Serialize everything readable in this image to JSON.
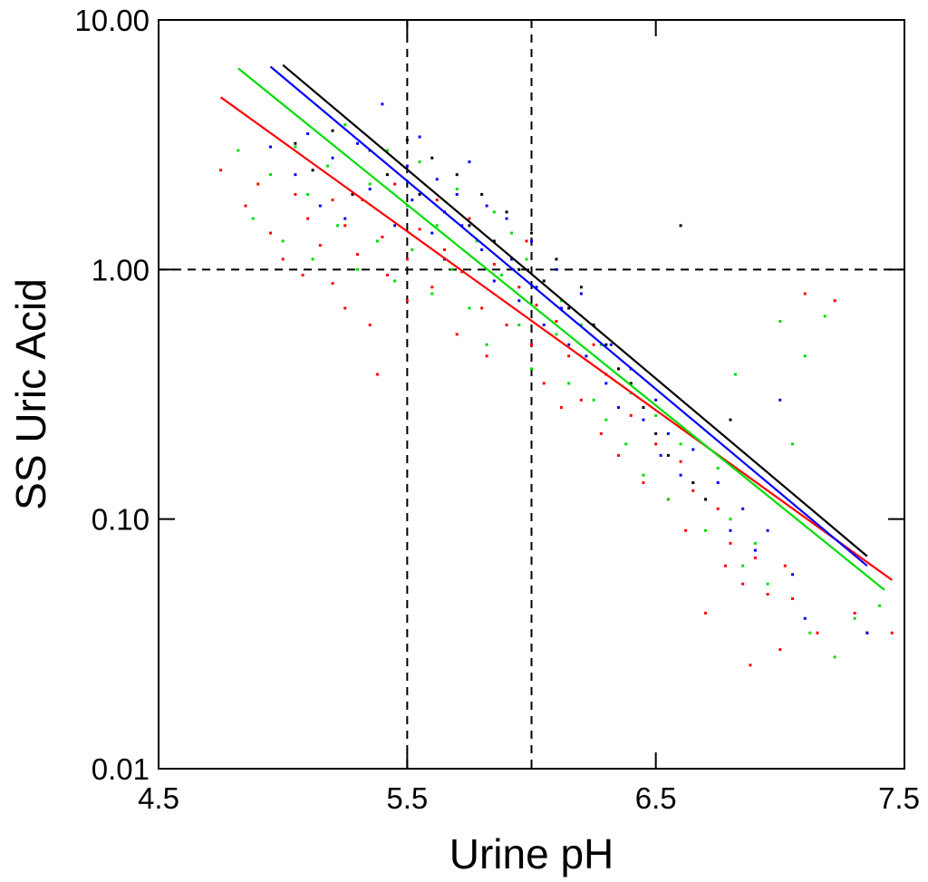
{
  "chart_data": {
    "type": "scatter",
    "title": "",
    "xlabel": "Urine pH",
    "ylabel": "SS Uric Acid",
    "xlim": [
      4.5,
      7.5
    ],
    "ylim": [
      0.01,
      10
    ],
    "yscale": "log",
    "x_ticks": [
      4.5,
      5.5,
      6.5,
      7.5
    ],
    "x_tick_labels": [
      "4.5",
      "5.5",
      "6.5",
      "7.5"
    ],
    "y_ticks": [
      0.01,
      0.1,
      1,
      10
    ],
    "y_tick_labels": [
      "0.01",
      "0.10",
      "1.00",
      "10.00"
    ],
    "grid": false,
    "legend": null,
    "reference_lines": [
      {
        "axis": "x",
        "value": 5.5,
        "style": "dashed"
      },
      {
        "axis": "x",
        "value": 6.0,
        "style": "dashed"
      },
      {
        "axis": "y",
        "value": 1.0,
        "style": "dashed"
      }
    ],
    "series": [
      {
        "color": "#ff0000",
        "fit_line": [
          [
            4.75,
            4.9
          ],
          [
            7.45,
            0.057
          ]
        ],
        "points": [
          [
            4.75,
            2.5
          ],
          [
            4.85,
            1.8
          ],
          [
            4.9,
            2.2
          ],
          [
            4.95,
            1.4
          ],
          [
            5.0,
            1.1
          ],
          [
            5.05,
            2.0
          ],
          [
            5.08,
            0.95
          ],
          [
            5.1,
            1.6
          ],
          [
            5.15,
            1.25
          ],
          [
            5.2,
            1.9
          ],
          [
            5.2,
            0.88
          ],
          [
            5.25,
            1.5
          ],
          [
            5.25,
            0.7
          ],
          [
            5.3,
            1.15
          ],
          [
            5.32,
            1.9
          ],
          [
            5.35,
            0.6
          ],
          [
            5.38,
            0.38
          ],
          [
            5.4,
            1.35
          ],
          [
            5.42,
            0.95
          ],
          [
            5.45,
            2.2
          ],
          [
            5.5,
            1.1
          ],
          [
            5.5,
            0.75
          ],
          [
            5.55,
            1.45
          ],
          [
            5.6,
            0.85
          ],
          [
            5.62,
            1.9
          ],
          [
            5.65,
            1.2
          ],
          [
            5.7,
            0.55
          ],
          [
            5.72,
            0.98
          ],
          [
            5.75,
            1.6
          ],
          [
            5.8,
            0.7
          ],
          [
            5.82,
            0.45
          ],
          [
            5.85,
            1.05
          ],
          [
            5.9,
            0.6
          ],
          [
            5.95,
            0.85
          ],
          [
            5.98,
            1.3
          ],
          [
            6.0,
            0.5
          ],
          [
            6.02,
            0.72
          ],
          [
            6.05,
            0.35
          ],
          [
            6.1,
            0.62
          ],
          [
            6.12,
            0.28
          ],
          [
            6.15,
            0.45
          ],
          [
            6.2,
            0.3
          ],
          [
            6.25,
            0.5
          ],
          [
            6.28,
            0.22
          ],
          [
            6.3,
            0.38
          ],
          [
            6.35,
            0.18
          ],
          [
            6.4,
            0.26
          ],
          [
            6.45,
            0.14
          ],
          [
            6.5,
            0.2
          ],
          [
            6.55,
            0.12
          ],
          [
            6.6,
            0.17
          ],
          [
            6.62,
            0.09
          ],
          [
            6.65,
            0.13
          ],
          [
            6.7,
            0.042
          ],
          [
            6.75,
            0.11
          ],
          [
            6.78,
            0.065
          ],
          [
            6.8,
            0.08
          ],
          [
            6.85,
            0.055
          ],
          [
            6.88,
            0.026
          ],
          [
            6.9,
            0.07
          ],
          [
            6.95,
            0.05
          ],
          [
            7.0,
            0.03
          ],
          [
            7.02,
            0.065
          ],
          [
            7.05,
            0.048
          ],
          [
            7.1,
            0.8
          ],
          [
            7.15,
            0.035
          ],
          [
            7.22,
            0.75
          ],
          [
            7.3,
            0.042
          ],
          [
            7.35,
            0.035
          ],
          [
            7.45,
            0.035
          ]
        ]
      },
      {
        "color": "#0000ff",
        "fit_line": [
          [
            4.95,
            6.5
          ],
          [
            7.35,
            0.065
          ]
        ],
        "points": [
          [
            4.95,
            3.1
          ],
          [
            5.05,
            2.4
          ],
          [
            5.1,
            3.5
          ],
          [
            5.15,
            1.8
          ],
          [
            5.2,
            2.8
          ],
          [
            5.25,
            1.6
          ],
          [
            5.3,
            3.2
          ],
          [
            5.35,
            2.1
          ],
          [
            5.4,
            4.6
          ],
          [
            5.45,
            1.5
          ],
          [
            5.5,
            2.6
          ],
          [
            5.52,
            1.9
          ],
          [
            5.55,
            3.4
          ],
          [
            5.6,
            1.4
          ],
          [
            5.62,
            2.3
          ],
          [
            5.65,
            1.1
          ],
          [
            5.7,
            2.0
          ],
          [
            5.72,
            1.5
          ],
          [
            5.75,
            2.7
          ],
          [
            5.8,
            1.2
          ],
          [
            5.82,
            1.8
          ],
          [
            5.85,
            0.9
          ],
          [
            5.9,
            1.6
          ],
          [
            5.92,
            1.1
          ],
          [
            5.95,
            0.75
          ],
          [
            6.0,
            1.3
          ],
          [
            6.02,
            0.85
          ],
          [
            6.05,
            0.6
          ],
          [
            6.1,
            1.0
          ],
          [
            6.12,
            0.7
          ],
          [
            6.15,
            0.5
          ],
          [
            6.2,
            0.8
          ],
          [
            6.22,
            0.45
          ],
          [
            6.25,
            0.6
          ],
          [
            6.3,
            0.35
          ],
          [
            6.32,
            0.5
          ],
          [
            6.35,
            0.28
          ],
          [
            6.4,
            0.4
          ],
          [
            6.45,
            0.25
          ],
          [
            6.5,
            0.3
          ],
          [
            6.52,
            0.18
          ],
          [
            6.55,
            0.22
          ],
          [
            6.6,
            0.15
          ],
          [
            6.65,
            0.19
          ],
          [
            6.7,
            0.12
          ],
          [
            6.75,
            0.14
          ],
          [
            6.8,
            0.09
          ],
          [
            6.85,
            0.11
          ],
          [
            6.9,
            0.075
          ],
          [
            6.95,
            0.09
          ],
          [
            7.0,
            0.3
          ],
          [
            7.05,
            0.06
          ],
          [
            7.1,
            0.04
          ],
          [
            7.35,
            0.035
          ]
        ]
      },
      {
        "color": "#00dd00",
        "fit_line": [
          [
            4.82,
            6.4
          ],
          [
            7.42,
            0.052
          ]
        ],
        "points": [
          [
            4.82,
            3.0
          ],
          [
            4.88,
            1.6
          ],
          [
            4.95,
            2.4
          ],
          [
            5.0,
            1.3
          ],
          [
            5.05,
            3.1
          ],
          [
            5.1,
            2.0
          ],
          [
            5.12,
            1.1
          ],
          [
            5.18,
            2.6
          ],
          [
            5.22,
            1.5
          ],
          [
            5.25,
            3.8
          ],
          [
            5.3,
            1.0
          ],
          [
            5.35,
            2.2
          ],
          [
            5.38,
            1.3
          ],
          [
            5.42,
            3.0
          ],
          [
            5.45,
            0.9
          ],
          [
            5.5,
            1.8
          ],
          [
            5.52,
            1.2
          ],
          [
            5.55,
            2.7
          ],
          [
            5.6,
            0.8
          ],
          [
            5.62,
            1.5
          ],
          [
            5.68,
            1.0
          ],
          [
            5.7,
            2.1
          ],
          [
            5.75,
            0.7
          ],
          [
            5.78,
            1.3
          ],
          [
            5.82,
            0.5
          ],
          [
            5.85,
            1.7
          ],
          [
            5.88,
            0.95
          ],
          [
            5.92,
            1.4
          ],
          [
            5.95,
            0.6
          ],
          [
            5.98,
            1.1
          ],
          [
            6.0,
            0.4
          ],
          [
            6.05,
            0.9
          ],
          [
            6.1,
            0.55
          ],
          [
            6.12,
            0.75
          ],
          [
            6.15,
            0.35
          ],
          [
            6.2,
            0.6
          ],
          [
            6.25,
            0.3
          ],
          [
            6.28,
            0.5
          ],
          [
            6.3,
            0.25
          ],
          [
            6.35,
            0.4
          ],
          [
            6.38,
            0.2
          ],
          [
            6.4,
            0.32
          ],
          [
            6.45,
            0.15
          ],
          [
            6.5,
            0.26
          ],
          [
            6.55,
            0.12
          ],
          [
            6.6,
            0.2
          ],
          [
            6.65,
            0.14
          ],
          [
            6.7,
            0.09
          ],
          [
            6.75,
            0.16
          ],
          [
            6.8,
            0.1
          ],
          [
            6.82,
            0.38
          ],
          [
            6.85,
            0.065
          ],
          [
            6.9,
            0.08
          ],
          [
            6.95,
            0.055
          ],
          [
            7.0,
            0.62
          ],
          [
            7.05,
            0.2
          ],
          [
            7.1,
            0.45
          ],
          [
            7.12,
            0.035
          ],
          [
            7.18,
            0.65
          ],
          [
            7.22,
            0.028
          ],
          [
            7.3,
            0.04
          ],
          [
            7.4,
            0.045
          ]
        ]
      },
      {
        "color": "#000000",
        "fit_line": [
          [
            5.0,
            6.6
          ],
          [
            7.35,
            0.071
          ]
        ],
        "points": [
          [
            5.05,
            3.2
          ],
          [
            5.12,
            2.5
          ],
          [
            5.2,
            3.6
          ],
          [
            5.28,
            2.0
          ],
          [
            5.35,
            3.0
          ],
          [
            5.42,
            2.4
          ],
          [
            5.5,
            3.3
          ],
          [
            5.55,
            2.0
          ],
          [
            5.6,
            2.8
          ],
          [
            5.65,
            1.7
          ],
          [
            5.7,
            2.4
          ],
          [
            5.75,
            1.5
          ],
          [
            5.8,
            2.0
          ],
          [
            5.85,
            1.3
          ],
          [
            5.9,
            1.7
          ],
          [
            5.95,
            1.0
          ],
          [
            6.0,
            1.4
          ],
          [
            6.05,
            0.9
          ],
          [
            6.1,
            1.1
          ],
          [
            6.15,
            0.7
          ],
          [
            6.2,
            0.85
          ],
          [
            6.25,
            0.6
          ],
          [
            6.3,
            0.5
          ],
          [
            6.35,
            0.4
          ],
          [
            6.4,
            0.35
          ],
          [
            6.45,
            0.28
          ],
          [
            6.5,
            0.22
          ],
          [
            6.55,
            0.18
          ],
          [
            6.6,
            1.5
          ],
          [
            6.65,
            0.14
          ],
          [
            6.7,
            0.12
          ],
          [
            6.8,
            0.25
          ]
        ]
      }
    ]
  }
}
